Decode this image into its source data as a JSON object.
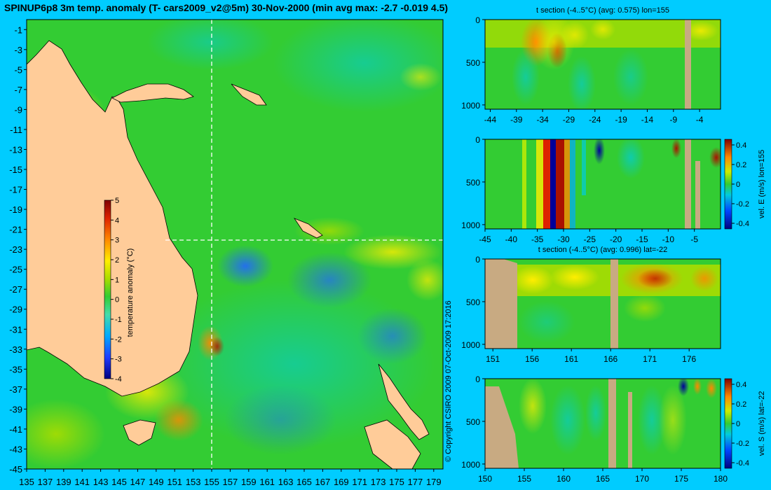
{
  "title": "SPINUP6p8 3m temp. anomaly (T- cars2009_v2@5m) 30-Nov-2000 (min avg max: -2.7 -0.019 4.5)",
  "copyright": "© Copyright CSIRO 2009   07-Oct-2009 17:2016",
  "colors": {
    "background": "#00ccff",
    "land": "#ffcc99",
    "seafloor": "#c8aa82",
    "ocean": "#33cc33"
  },
  "chart_data": [
    {
      "type": "heatmap",
      "name": "map",
      "title": "SPINUP6p8 3m temp. anomaly (T- cars2009_v2@5m) 30-Nov-2000 (min avg max: -2.7 -0.019 4.5)",
      "xlim": [
        135,
        180
      ],
      "ylim": [
        -45,
        0
      ],
      "x_ticks": [
        "135",
        "137",
        "139",
        "141",
        "143",
        "145",
        "147",
        "149",
        "151",
        "153",
        "155",
        "157",
        "159",
        "161",
        "163",
        "165",
        "167",
        "169",
        "171",
        "173",
        "175",
        "177",
        "179"
      ],
      "y_ticks": [
        "-1",
        "-3",
        "-5",
        "-7",
        "-9",
        "-11",
        "-13",
        "-15",
        "-17",
        "-19",
        "-21",
        "-23",
        "-25",
        "-27",
        "-29",
        "-31",
        "-33",
        "-35",
        "-37",
        "-39",
        "-41",
        "-43",
        "-45"
      ],
      "section_lon": 155,
      "section_lat": -22,
      "colorbar": {
        "label": "temperature anomaly (°C)",
        "range": [
          -4,
          5
        ],
        "ticks": [
          "5",
          "4",
          "3",
          "2",
          "1",
          "0",
          "-1",
          "-2",
          "-3",
          "-4"
        ]
      }
    },
    {
      "type": "heatmap",
      "name": "t-section-lon",
      "title": "t section (-4..5°C) (avg: 0.575) lon=155",
      "x_ticks": [
        "-44",
        "-39",
        "-34",
        "-29",
        "-24",
        "-19",
        "-14",
        "-9",
        "-4"
      ],
      "xlim": [
        -45,
        0
      ],
      "y_ticks": [
        "0",
        "500",
        "1000"
      ],
      "ylim": [
        0,
        1050
      ]
    },
    {
      "type": "heatmap",
      "name": "vel-e-section",
      "x_ticks": [
        "-45",
        "-40",
        "-35",
        "-30",
        "-25",
        "-20",
        "-15",
        "-10",
        "-5"
      ],
      "xlim": [
        -45,
        0
      ],
      "y_ticks": [
        "0",
        "500",
        "1000"
      ],
      "ylim": [
        0,
        1050
      ],
      "colorbar": {
        "label": "vel. E (m/s) lon=155",
        "ticks": [
          "0.4",
          "0.2",
          "0",
          "-0.2",
          "-0.4"
        ]
      }
    },
    {
      "type": "heatmap",
      "name": "t-section-lat",
      "title": "t section (-4..5°C) (avg: 0.996) lat=-22",
      "x_ticks": [
        "151",
        "156",
        "161",
        "166",
        "171",
        "176"
      ],
      "xlim": [
        150,
        180
      ],
      "y_ticks": [
        "0",
        "500",
        "1000"
      ],
      "ylim": [
        0,
        1050
      ]
    },
    {
      "type": "heatmap",
      "name": "vel-s-section",
      "x_ticks": [
        "150",
        "155",
        "160",
        "165",
        "170",
        "175",
        "180"
      ],
      "xlim": [
        150,
        180
      ],
      "y_ticks": [
        "0",
        "500",
        "1000"
      ],
      "ylim": [
        0,
        1050
      ],
      "colorbar": {
        "label": "vel. S (m/s) lat=-22",
        "ticks": [
          "0.4",
          "0.2",
          "0",
          "-0.2",
          "-0.4"
        ]
      }
    }
  ]
}
